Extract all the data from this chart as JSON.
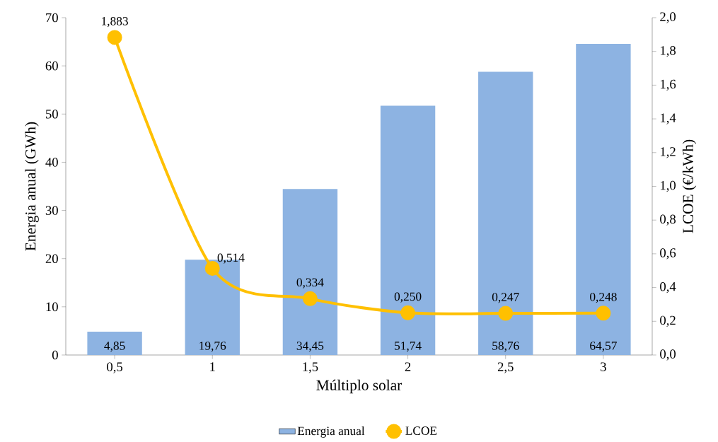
{
  "chart_data": {
    "type": "bar",
    "xlabel": "Múltiplo solar",
    "ylabel": "Energia anual (GWh)",
    "y2label": "LCOE (€/kWh)",
    "categories": [
      "0,5",
      "1",
      "1,5",
      "2",
      "2,5",
      "3"
    ],
    "series": [
      {
        "name": "Energia anual",
        "color": "#8db3e2",
        "values": [
          4.85,
          19.76,
          34.45,
          51.74,
          58.76,
          64.57
        ],
        "value_labels": [
          "4,85",
          "19,76",
          "34,45",
          "51,74",
          "58,76",
          "64,57"
        ]
      },
      {
        "name": "LCOE",
        "type": "line",
        "axis": "y2",
        "color": "#ffc000",
        "values": [
          1.883,
          0.514,
          0.334,
          0.25,
          0.247,
          0.248
        ],
        "value_labels": [
          "1,883",
          "0,514",
          "0,334",
          "0,250",
          "0,247",
          "0,248"
        ]
      }
    ],
    "ylim": [
      0,
      70
    ],
    "yticks": [
      0,
      10,
      20,
      30,
      40,
      50,
      60,
      70
    ],
    "y2lim": [
      0,
      2.0
    ],
    "y2ticks": [
      {
        "value": 0,
        "label": "0,0"
      },
      {
        "value": 0.2,
        "label": "0,2"
      },
      {
        "value": 0.4,
        "label": "0,4"
      },
      {
        "value": 0.6,
        "label": "0,6"
      },
      {
        "value": 0.8,
        "label": "0,8"
      },
      {
        "value": 1.0,
        "label": "1,0"
      },
      {
        "value": 1.2,
        "label": "1,2"
      },
      {
        "value": 1.4,
        "label": "1,4"
      },
      {
        "value": 1.6,
        "label": "1,6"
      },
      {
        "value": 1.8,
        "label": "1,8"
      },
      {
        "value": 2.0,
        "label": "2,0"
      }
    ],
    "marker": "circle",
    "legend": "bottom",
    "grid": false
  }
}
